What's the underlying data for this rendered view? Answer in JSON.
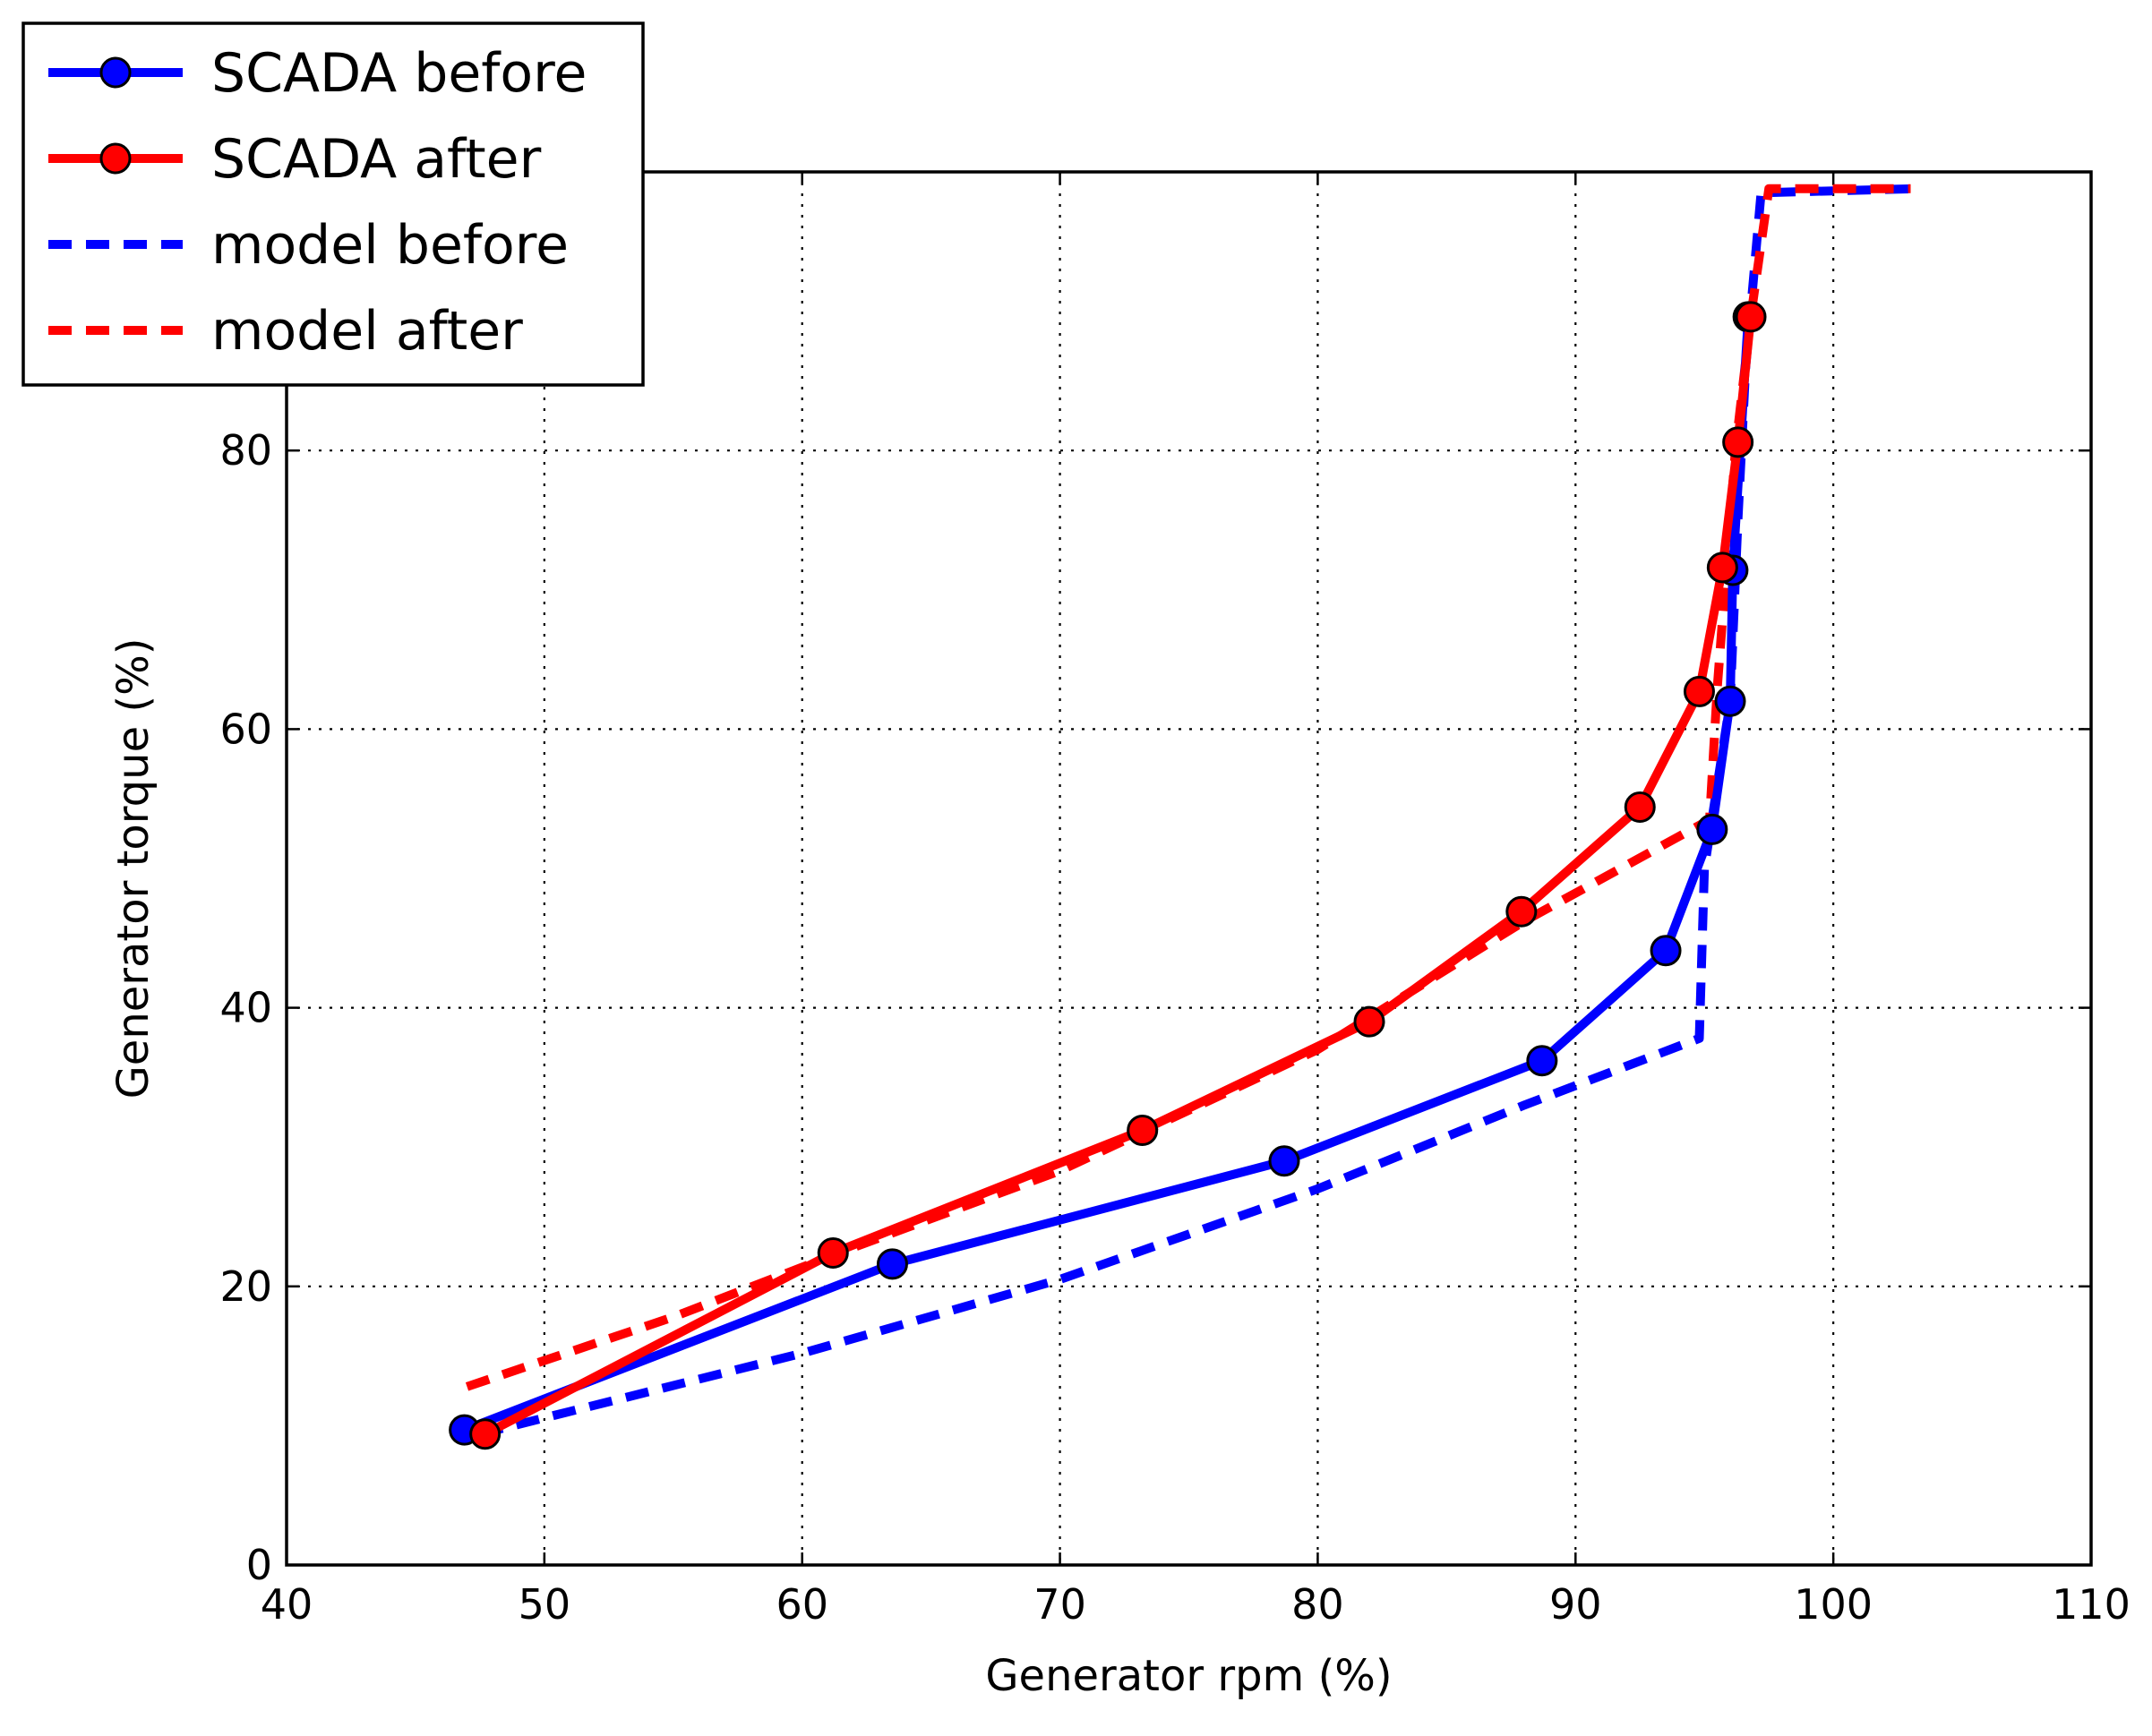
{
  "chart_data": {
    "type": "line",
    "title": "",
    "xlabel": "Generator rpm (%)",
    "ylabel": "Generator torque (%)",
    "xlim": [
      40,
      110
    ],
    "ylim": [
      0,
      100
    ],
    "xticks": [
      40,
      50,
      60,
      70,
      80,
      90,
      100,
      110
    ],
    "yticks": [
      0,
      20,
      40,
      60,
      80
    ],
    "grid": true,
    "legend_position": "top-left",
    "series": [
      {
        "name": "SCADA before",
        "color": "#0000ff",
        "style": "solid",
        "marker": "circle",
        "points": [
          [
            46.9,
            9.7
          ],
          [
            63.5,
            21.6
          ],
          [
            78.7,
            29.0
          ],
          [
            88.7,
            36.2
          ],
          [
            93.5,
            44.1
          ],
          [
            95.3,
            52.8
          ],
          [
            96.0,
            62.0
          ],
          [
            96.1,
            71.4
          ],
          [
            96.7,
            89.6
          ]
        ]
      },
      {
        "name": "SCADA after",
        "color": "#ff0000",
        "style": "solid",
        "marker": "circle",
        "points": [
          [
            47.7,
            9.4
          ],
          [
            61.2,
            22.4
          ],
          [
            73.2,
            31.2
          ],
          [
            82.0,
            39.0
          ],
          [
            87.9,
            46.9
          ],
          [
            92.5,
            54.4
          ],
          [
            94.8,
            62.7
          ],
          [
            95.7,
            71.6
          ],
          [
            96.3,
            80.6
          ],
          [
            96.8,
            89.6
          ]
        ]
      },
      {
        "name": "model before",
        "color": "#0000ff",
        "style": "dashed",
        "marker": "none",
        "points": [
          [
            47.5,
            9.4
          ],
          [
            60.0,
            15.2
          ],
          [
            70.0,
            20.5
          ],
          [
            80.0,
            27.0
          ],
          [
            88.0,
            33.0
          ],
          [
            94.8,
            37.8
          ],
          [
            95.0,
            50.0
          ],
          [
            96.0,
            62.0
          ],
          [
            96.3,
            75.0
          ],
          [
            96.6,
            86.0
          ],
          [
            97.2,
            98.5
          ],
          [
            103.3,
            98.8
          ]
        ]
      },
      {
        "name": "model after",
        "color": "#ff0000",
        "style": "dashed",
        "marker": "none",
        "points": [
          [
            47.0,
            12.8
          ],
          [
            55.0,
            17.8
          ],
          [
            62.0,
            22.8
          ],
          [
            70.0,
            28.3
          ],
          [
            80.0,
            37.0
          ],
          [
            88.0,
            46.2
          ],
          [
            95.2,
            53.5
          ],
          [
            95.5,
            63.0
          ],
          [
            96.2,
            80.0
          ],
          [
            96.8,
            89.6
          ],
          [
            97.5,
            98.8
          ],
          [
            103.0,
            98.8
          ]
        ]
      }
    ]
  }
}
